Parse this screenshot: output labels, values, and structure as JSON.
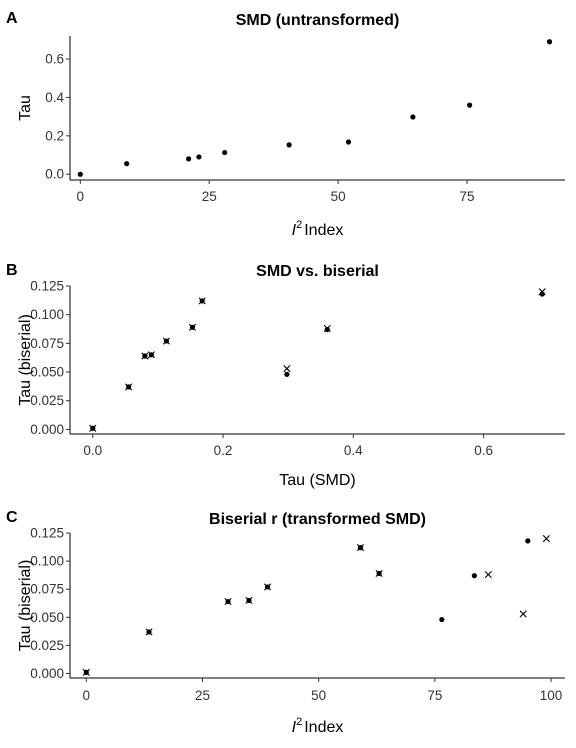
{
  "chart_data": [
    {
      "panel": "A",
      "type": "scatter",
      "title": "SMD (untransformed)",
      "xlabel": "Index",
      "xlabel_symbol": "I",
      "xlabel_sup": "2",
      "ylabel": "Tau",
      "xlim": [
        -2,
        94
      ],
      "ylim": [
        -0.03,
        0.72
      ],
      "xticks": [
        0,
        25,
        50,
        75
      ],
      "xtick_labels": [
        "0",
        "25",
        "50",
        "75"
      ],
      "yticks": [
        0.0,
        0.2,
        0.4,
        0.6
      ],
      "ytick_labels": [
        "0.0",
        "0.2",
        "0.4",
        "0.6"
      ],
      "grid": false,
      "series": [
        {
          "marker": "dot",
          "x": [
            0,
            9,
            21,
            23,
            28,
            40.5,
            52,
            64.5,
            75.5,
            91
          ],
          "y": [
            0.0,
            0.055,
            0.08,
            0.09,
            0.113,
            0.153,
            0.168,
            0.298,
            0.36,
            0.69
          ]
        }
      ]
    },
    {
      "panel": "B",
      "type": "scatter",
      "title": "SMD vs. biserial",
      "xlabel": "Tau (SMD)",
      "ylabel": "Tau (biserial)",
      "xlim": [
        -0.035,
        0.725
      ],
      "ylim": [
        -0.004,
        0.125
      ],
      "xticks": [
        0.0,
        0.2,
        0.4,
        0.6
      ],
      "xtick_labels": [
        "0.0",
        "0.2",
        "0.4",
        "0.6"
      ],
      "yticks": [
        0.0,
        0.025,
        0.05,
        0.075,
        0.1,
        0.125
      ],
      "ytick_labels": [
        "0.000",
        "0.025",
        "0.050",
        "0.075",
        "0.100",
        "0.125"
      ],
      "grid": false,
      "series": [
        {
          "marker": "dot",
          "x": [
            0.0,
            0.055,
            0.08,
            0.09,
            0.113,
            0.153,
            0.168,
            0.298,
            0.36,
            0.69
          ],
          "y": [
            0.001,
            0.037,
            0.064,
            0.065,
            0.077,
            0.089,
            0.112,
            0.048,
            0.087,
            0.118
          ]
        },
        {
          "marker": "cross",
          "x": [
            0.0,
            0.055,
            0.08,
            0.09,
            0.113,
            0.153,
            0.168,
            0.298,
            0.36,
            0.69
          ],
          "y": [
            0.001,
            0.037,
            0.064,
            0.065,
            0.077,
            0.089,
            0.112,
            0.053,
            0.088,
            0.12
          ]
        }
      ]
    },
    {
      "panel": "C",
      "type": "scatter",
      "title": "Biserial r (transformed SMD)",
      "xlabel": "Index",
      "xlabel_symbol": "I",
      "xlabel_sup": "2",
      "ylabel": "Tau (biserial)",
      "xlim": [
        -3.5,
        103
      ],
      "ylim": [
        -0.004,
        0.125
      ],
      "xticks": [
        0,
        25,
        50,
        75,
        100
      ],
      "xtick_labels": [
        "0",
        "25",
        "50",
        "75",
        "100"
      ],
      "yticks": [
        0.0,
        0.025,
        0.05,
        0.075,
        0.1,
        0.125
      ],
      "ytick_labels": [
        "0.000",
        "0.025",
        "0.050",
        "0.075",
        "0.100",
        "0.125"
      ],
      "grid": false,
      "series": [
        {
          "marker": "dot",
          "x": [
            0,
            13.5,
            30.5,
            35,
            39,
            59,
            63,
            76.5,
            83.5,
            95
          ],
          "y": [
            0.001,
            0.037,
            0.064,
            0.065,
            0.077,
            0.112,
            0.089,
            0.048,
            0.087,
            0.118
          ]
        },
        {
          "marker": "cross",
          "x": [
            0,
            13.5,
            30.5,
            35,
            39,
            59,
            63,
            86.5,
            94,
            99
          ],
          "y": [
            0.001,
            0.037,
            0.064,
            0.065,
            0.077,
            0.112,
            0.089,
            0.088,
            0.053,
            0.12
          ]
        }
      ]
    }
  ]
}
